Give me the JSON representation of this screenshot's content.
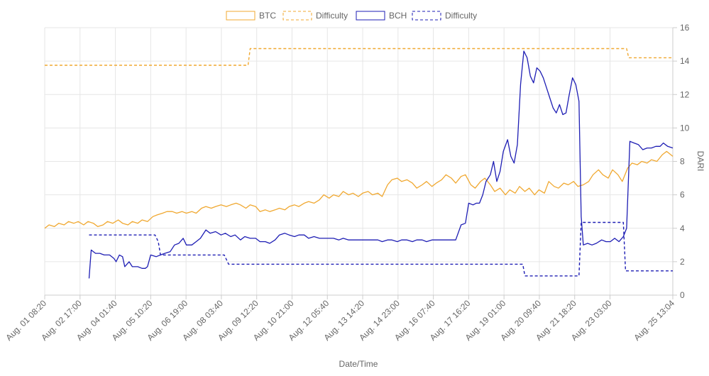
{
  "chart_data": {
    "type": "line",
    "title": "",
    "xlabel": "Date/Time",
    "ylabel": "DARI",
    "ylim": [
      0,
      16
    ],
    "yticks": [
      0,
      2,
      4,
      6,
      8,
      10,
      12,
      14,
      16
    ],
    "grid": true,
    "legend_position": "top",
    "x_ticks": [
      "Aug. 01 08:20",
      "Aug. 02 17:00",
      "Aug. 04 01:40",
      "Aug. 05 10:20",
      "Aug. 06 19:00",
      "Aug. 08 03:40",
      "Aug. 09 12:20",
      "Aug. 10 21:00",
      "Aug. 12 05:40",
      "Aug. 13 14:20",
      "Aug. 14 23:00",
      "Aug. 16 07:40",
      "Aug. 17 16:20",
      "Aug. 19 01:00",
      "Aug. 20 09:40",
      "Aug. 21 18:20",
      "Aug. 23 03:00",
      "Aug. 25 13:04"
    ],
    "x_tick_hours": [
      0,
      32.67,
      65.33,
      98,
      130.67,
      163.33,
      196,
      228.67,
      261.33,
      294,
      326.67,
      359.33,
      392,
      424.67,
      457.33,
      490,
      522.67,
      580.73
    ],
    "x_range_hours": [
      0,
      580.73
    ],
    "series": [
      {
        "name": "BTC",
        "color": "#f0a830",
        "dashed": false,
        "points": [
          [
            0,
            4.0
          ],
          [
            4,
            4.2
          ],
          [
            9,
            4.1
          ],
          [
            13,
            4.3
          ],
          [
            18,
            4.2
          ],
          [
            22,
            4.4
          ],
          [
            27,
            4.3
          ],
          [
            31,
            4.4
          ],
          [
            36,
            4.2
          ],
          [
            40,
            4.4
          ],
          [
            45,
            4.3
          ],
          [
            49,
            4.1
          ],
          [
            54,
            4.2
          ],
          [
            58,
            4.4
          ],
          [
            63,
            4.3
          ],
          [
            68,
            4.5
          ],
          [
            72,
            4.3
          ],
          [
            77,
            4.2
          ],
          [
            81,
            4.4
          ],
          [
            86,
            4.3
          ],
          [
            90,
            4.5
          ],
          [
            95,
            4.4
          ],
          [
            100,
            4.7
          ],
          [
            104,
            4.8
          ],
          [
            109,
            4.9
          ],
          [
            113,
            5.0
          ],
          [
            118,
            5.0
          ],
          [
            122,
            4.9
          ],
          [
            127,
            5.0
          ],
          [
            131,
            4.9
          ],
          [
            136,
            5.0
          ],
          [
            140,
            4.9
          ],
          [
            145,
            5.2
          ],
          [
            149,
            5.3
          ],
          [
            154,
            5.2
          ],
          [
            158,
            5.3
          ],
          [
            163,
            5.4
          ],
          [
            168,
            5.3
          ],
          [
            172,
            5.4
          ],
          [
            177,
            5.5
          ],
          [
            181,
            5.4
          ],
          [
            186,
            5.2
          ],
          [
            190,
            5.4
          ],
          [
            195,
            5.3
          ],
          [
            199,
            5.0
          ],
          [
            204,
            5.1
          ],
          [
            208,
            5.0
          ],
          [
            213,
            5.1
          ],
          [
            217,
            5.2
          ],
          [
            222,
            5.1
          ],
          [
            226,
            5.3
          ],
          [
            231,
            5.4
          ],
          [
            235,
            5.3
          ],
          [
            240,
            5.5
          ],
          [
            244,
            5.6
          ],
          [
            249,
            5.5
          ],
          [
            254,
            5.7
          ],
          [
            258,
            6.0
          ],
          [
            263,
            5.8
          ],
          [
            267,
            6.0
          ],
          [
            272,
            5.9
          ],
          [
            276,
            6.2
          ],
          [
            281,
            6.0
          ],
          [
            285,
            6.1
          ],
          [
            290,
            5.9
          ],
          [
            294,
            6.1
          ],
          [
            299,
            6.2
          ],
          [
            303,
            6.0
          ],
          [
            308,
            6.1
          ],
          [
            312,
            5.9
          ],
          [
            317,
            6.6
          ],
          [
            321,
            6.9
          ],
          [
            326,
            7.0
          ],
          [
            330,
            6.8
          ],
          [
            335,
            6.9
          ],
          [
            340,
            6.7
          ],
          [
            344,
            6.4
          ],
          [
            349,
            6.6
          ],
          [
            353,
            6.8
          ],
          [
            358,
            6.5
          ],
          [
            362,
            6.7
          ],
          [
            367,
            6.9
          ],
          [
            371,
            7.2
          ],
          [
            376,
            7.0
          ],
          [
            380,
            6.7
          ],
          [
            385,
            7.1
          ],
          [
            389,
            7.2
          ],
          [
            394,
            6.6
          ],
          [
            398,
            6.4
          ],
          [
            403,
            6.8
          ],
          [
            407,
            7.0
          ],
          [
            412,
            6.6
          ],
          [
            416,
            6.2
          ],
          [
            421,
            6.4
          ],
          [
            426,
            6.0
          ],
          [
            430,
            6.3
          ],
          [
            435,
            6.1
          ],
          [
            439,
            6.5
          ],
          [
            444,
            6.2
          ],
          [
            448,
            6.4
          ],
          [
            453,
            6.0
          ],
          [
            457,
            6.3
          ],
          [
            462,
            6.1
          ],
          [
            466,
            6.8
          ],
          [
            471,
            6.5
          ],
          [
            475,
            6.4
          ],
          [
            480,
            6.7
          ],
          [
            484,
            6.6
          ],
          [
            489,
            6.8
          ],
          [
            493,
            6.5
          ],
          [
            498,
            6.6
          ],
          [
            503,
            6.8
          ],
          [
            507,
            7.2
          ],
          [
            512,
            7.5
          ],
          [
            516,
            7.2
          ],
          [
            521,
            7.0
          ],
          [
            525,
            7.5
          ],
          [
            530,
            7.2
          ],
          [
            534,
            6.8
          ],
          [
            539,
            7.6
          ],
          [
            543,
            7.9
          ],
          [
            548,
            7.8
          ],
          [
            552,
            8.0
          ],
          [
            557,
            7.9
          ],
          [
            561,
            8.1
          ],
          [
            566,
            8.0
          ],
          [
            571,
            8.4
          ],
          [
            575,
            8.6
          ],
          [
            580.73,
            8.3
          ]
        ]
      },
      {
        "name": "Difficulty",
        "color": "#f0a830",
        "dashed": true,
        "points": [
          [
            0,
            13.75
          ],
          [
            188,
            13.75
          ],
          [
            190,
            14.75
          ],
          [
            538,
            14.75
          ],
          [
            540,
            14.2
          ],
          [
            580.73,
            14.2
          ]
        ]
      },
      {
        "name": "BCH",
        "color": "#1e1eb4",
        "dashed": false,
        "points": [
          [
            41,
            1.0
          ],
          [
            43,
            2.7
          ],
          [
            47,
            2.5
          ],
          [
            51,
            2.5
          ],
          [
            55,
            2.4
          ],
          [
            60,
            2.4
          ],
          [
            64,
            2.2
          ],
          [
            66,
            2.0
          ],
          [
            69,
            2.4
          ],
          [
            72,
            2.3
          ],
          [
            74,
            1.7
          ],
          [
            78,
            2.0
          ],
          [
            81,
            1.7
          ],
          [
            86,
            1.7
          ],
          [
            90,
            1.6
          ],
          [
            93,
            1.6
          ],
          [
            95,
            1.7
          ],
          [
            98,
            2.4
          ],
          [
            103,
            2.3
          ],
          [
            107,
            2.4
          ],
          [
            111,
            2.5
          ],
          [
            116,
            2.6
          ],
          [
            120,
            3.0
          ],
          [
            124,
            3.1
          ],
          [
            128,
            3.4
          ],
          [
            131,
            3.0
          ],
          [
            136,
            3.0
          ],
          [
            140,
            3.2
          ],
          [
            144,
            3.4
          ],
          [
            149,
            3.9
          ],
          [
            153,
            3.7
          ],
          [
            158,
            3.8
          ],
          [
            163,
            3.6
          ],
          [
            167,
            3.7
          ],
          [
            172,
            3.5
          ],
          [
            176,
            3.6
          ],
          [
            181,
            3.3
          ],
          [
            185,
            3.5
          ],
          [
            190,
            3.4
          ],
          [
            195,
            3.4
          ],
          [
            199,
            3.2
          ],
          [
            204,
            3.2
          ],
          [
            208,
            3.1
          ],
          [
            213,
            3.3
          ],
          [
            217,
            3.6
          ],
          [
            222,
            3.7
          ],
          [
            226,
            3.6
          ],
          [
            231,
            3.5
          ],
          [
            235,
            3.6
          ],
          [
            240,
            3.6
          ],
          [
            244,
            3.4
          ],
          [
            249,
            3.5
          ],
          [
            254,
            3.4
          ],
          [
            258,
            3.4
          ],
          [
            263,
            3.4
          ],
          [
            267,
            3.4
          ],
          [
            272,
            3.3
          ],
          [
            276,
            3.4
          ],
          [
            281,
            3.3
          ],
          [
            285,
            3.3
          ],
          [
            290,
            3.3
          ],
          [
            294,
            3.3
          ],
          [
            299,
            3.3
          ],
          [
            303,
            3.3
          ],
          [
            308,
            3.3
          ],
          [
            312,
            3.2
          ],
          [
            317,
            3.3
          ],
          [
            321,
            3.3
          ],
          [
            326,
            3.2
          ],
          [
            330,
            3.3
          ],
          [
            335,
            3.3
          ],
          [
            340,
            3.2
          ],
          [
            344,
            3.3
          ],
          [
            349,
            3.3
          ],
          [
            353,
            3.2
          ],
          [
            358,
            3.3
          ],
          [
            362,
            3.3
          ],
          [
            367,
            3.3
          ],
          [
            371,
            3.3
          ],
          [
            376,
            3.3
          ],
          [
            380,
            3.3
          ],
          [
            385,
            4.2
          ],
          [
            389,
            4.3
          ],
          [
            392,
            5.5
          ],
          [
            396,
            5.4
          ],
          [
            399,
            5.5
          ],
          [
            402,
            5.5
          ],
          [
            405,
            6.0
          ],
          [
            408,
            6.8
          ],
          [
            412,
            7.2
          ],
          [
            415,
            8.0
          ],
          [
            418,
            6.8
          ],
          [
            421,
            7.4
          ],
          [
            424,
            8.6
          ],
          [
            428,
            9.3
          ],
          [
            431,
            8.3
          ],
          [
            434,
            7.9
          ],
          [
            437,
            9.0
          ],
          [
            440,
            12.6
          ],
          [
            443,
            14.6
          ],
          [
            446,
            14.2
          ],
          [
            449,
            13.1
          ],
          [
            452,
            12.7
          ],
          [
            455,
            13.6
          ],
          [
            458,
            13.4
          ],
          [
            461,
            13.0
          ],
          [
            464,
            12.4
          ],
          [
            467,
            11.8
          ],
          [
            470,
            11.2
          ],
          [
            473,
            10.9
          ],
          [
            476,
            11.4
          ],
          [
            479,
            10.8
          ],
          [
            482,
            10.9
          ],
          [
            485,
            12.0
          ],
          [
            488,
            13.0
          ],
          [
            491,
            12.6
          ],
          [
            494,
            11.6
          ],
          [
            496,
            4.7
          ],
          [
            498,
            3.0
          ],
          [
            502,
            3.1
          ],
          [
            506,
            3.0
          ],
          [
            510,
            3.1
          ],
          [
            515,
            3.3
          ],
          [
            519,
            3.2
          ],
          [
            523,
            3.2
          ],
          [
            527,
            3.4
          ],
          [
            531,
            3.2
          ],
          [
            535,
            3.5
          ],
          [
            538,
            4.0
          ],
          [
            541,
            9.2
          ],
          [
            545,
            9.1
          ],
          [
            549,
            9.0
          ],
          [
            553,
            8.7
          ],
          [
            557,
            8.8
          ],
          [
            561,
            8.8
          ],
          [
            565,
            8.9
          ],
          [
            569,
            8.9
          ],
          [
            572,
            9.1
          ],
          [
            576,
            8.9
          ],
          [
            580.73,
            8.8
          ]
        ]
      },
      {
        "name": "Difficulty",
        "color": "#1e1eb4",
        "dashed": true,
        "points": [
          [
            41,
            3.6
          ],
          [
            102,
            3.6
          ],
          [
            105,
            3.2
          ],
          [
            107,
            2.4
          ],
          [
            166,
            2.4
          ],
          [
            170,
            1.85
          ],
          [
            442,
            1.85
          ],
          [
            444,
            1.15
          ],
          [
            494,
            1.15
          ],
          [
            496,
            4.35
          ],
          [
            535,
            4.35
          ],
          [
            537,
            1.45
          ],
          [
            580.73,
            1.45
          ]
        ]
      }
    ]
  }
}
